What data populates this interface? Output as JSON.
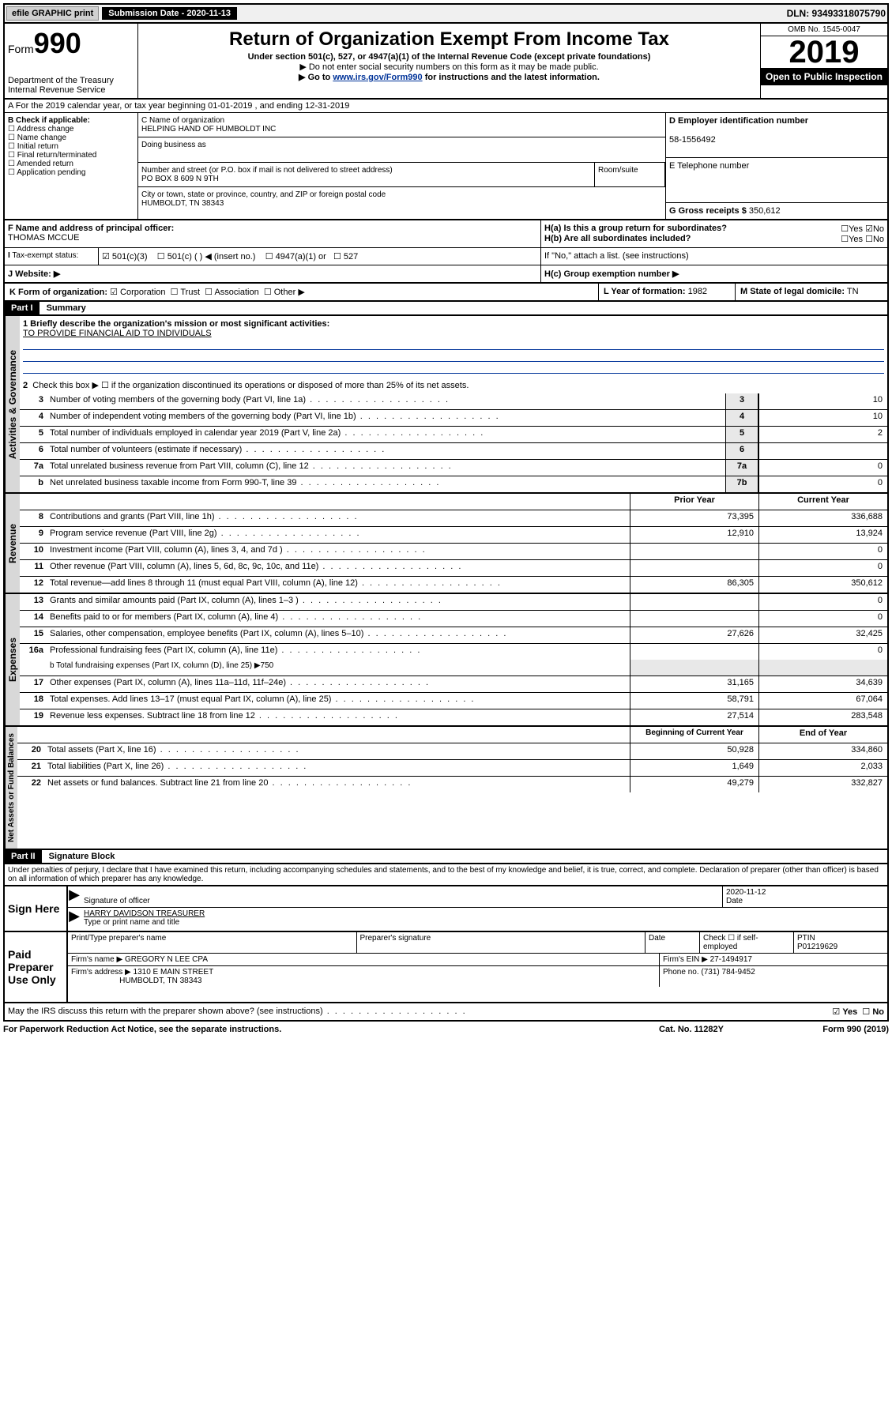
{
  "topbar": {
    "efile": "efile GRAPHIC print",
    "submission_label": "Submission Date - 2020-11-13",
    "dln": "DLN: 93493318075790"
  },
  "header": {
    "form_label": "Form",
    "form_number": "990",
    "dept": "Department of the Treasury",
    "irs": "Internal Revenue Service",
    "title": "Return of Organization Exempt From Income Tax",
    "subtitle": "Under section 501(c), 527, or 4947(a)(1) of the Internal Revenue Code (except private foundations)",
    "note1": "▶ Do not enter social security numbers on this form as it may be made public.",
    "note2_pre": "▶ Go to ",
    "note2_link": "www.irs.gov/Form990",
    "note2_post": " for instructions and the latest information.",
    "omb": "OMB No. 1545-0047",
    "year": "2019",
    "open": "Open to Public Inspection"
  },
  "line_a": "A For the 2019 calendar year, or tax year beginning 01-01-2019     , and ending 12-31-2019",
  "box_b": {
    "label": "B Check if applicable:",
    "opts": [
      "Address change",
      "Name change",
      "Initial return",
      "Final return/terminated",
      "Amended return",
      "Application pending"
    ]
  },
  "box_c": {
    "name_label": "C Name of organization",
    "name": "HELPING HAND OF HUMBOLDT INC",
    "dba_label": "Doing business as",
    "addr_label": "Number and street (or P.O. box if mail is not delivered to street address)",
    "addr": "PO BOX 8 609 N 9TH",
    "room_label": "Room/suite",
    "city_label": "City or town, state or province, country, and ZIP or foreign postal code",
    "city": "HUMBOLDT, TN  38343"
  },
  "box_d": {
    "label": "D Employer identification number",
    "val": "58-1556492"
  },
  "box_e": {
    "label": "E Telephone number"
  },
  "box_g": {
    "label": "G Gross receipts $",
    "val": "350,612"
  },
  "box_f": {
    "label": "F  Name and address of principal officer:",
    "val": "THOMAS MCCUE"
  },
  "box_h": {
    "h_a": "H(a)  Is this a group return for subordinates?",
    "h_b": "H(b)  Are all subordinates included?",
    "h_b_note": "If \"No,\" attach a list. (see instructions)",
    "h_c": "H(c)  Group exemption number ▶",
    "yes": "Yes",
    "no": "No"
  },
  "box_i": {
    "label": "Tax-exempt status:",
    "opts": [
      "501(c)(3)",
      "501(c) (  ) ◀ (insert no.)",
      "4947(a)(1) or",
      "527"
    ]
  },
  "box_j": {
    "label": "J   Website: ▶"
  },
  "box_k": {
    "label": "K Form of organization:",
    "opts": [
      "Corporation",
      "Trust",
      "Association",
      "Other ▶"
    ]
  },
  "box_l": {
    "label": "L Year of formation:",
    "val": "1982"
  },
  "box_m": {
    "label": "M State of legal domicile:",
    "val": "TN"
  },
  "part1": {
    "header": "Part I",
    "title": "Summary"
  },
  "summary": {
    "side1": "Activities & Governance",
    "side2": "Revenue",
    "side3": "Expenses",
    "side4": "Net Assets or Fund Balances",
    "l1_label": "1  Briefly describe the organization's mission or most significant activities:",
    "l1_val": "TO PROVIDE FINANCIAL AID TO INDIVIDUALS",
    "l2": "Check this box ▶ ☐  if the organization discontinued its operations or disposed of more than 25% of its net assets.",
    "rows_top": [
      {
        "n": "3",
        "d": "Number of voting members of the governing body (Part VI, line 1a)",
        "lbl": "3",
        "v": "10"
      },
      {
        "n": "4",
        "d": "Number of independent voting members of the governing body (Part VI, line 1b)",
        "lbl": "4",
        "v": "10"
      },
      {
        "n": "5",
        "d": "Total number of individuals employed in calendar year 2019 (Part V, line 2a)",
        "lbl": "5",
        "v": "2"
      },
      {
        "n": "6",
        "d": "Total number of volunteers (estimate if necessary)",
        "lbl": "6",
        "v": ""
      },
      {
        "n": "7a",
        "d": "Total unrelated business revenue from Part VIII, column (C), line 12",
        "lbl": "7a",
        "v": "0"
      },
      {
        "n": "b",
        "d": "Net unrelated business taxable income from Form 990-T, line 39",
        "lbl": "7b",
        "v": "0"
      }
    ],
    "col_py": "Prior Year",
    "col_cy": "Current Year",
    "rows_rev": [
      {
        "n": "8",
        "d": "Contributions and grants (Part VIII, line 1h)",
        "py": "73,395",
        "cy": "336,688"
      },
      {
        "n": "9",
        "d": "Program service revenue (Part VIII, line 2g)",
        "py": "12,910",
        "cy": "13,924"
      },
      {
        "n": "10",
        "d": "Investment income (Part VIII, column (A), lines 3, 4, and 7d )",
        "py": "",
        "cy": "0"
      },
      {
        "n": "11",
        "d": "Other revenue (Part VIII, column (A), lines 5, 6d, 8c, 9c, 10c, and 11e)",
        "py": "",
        "cy": "0"
      },
      {
        "n": "12",
        "d": "Total revenue—add lines 8 through 11 (must equal Part VIII, column (A), line 12)",
        "py": "86,305",
        "cy": "350,612"
      }
    ],
    "rows_exp": [
      {
        "n": "13",
        "d": "Grants and similar amounts paid (Part IX, column (A), lines 1–3 )",
        "py": "",
        "cy": "0"
      },
      {
        "n": "14",
        "d": "Benefits paid to or for members (Part IX, column (A), line 4)",
        "py": "",
        "cy": "0"
      },
      {
        "n": "15",
        "d": "Salaries, other compensation, employee benefits (Part IX, column (A), lines 5–10)",
        "py": "27,626",
        "cy": "32,425"
      },
      {
        "n": "16a",
        "d": "Professional fundraising fees (Part IX, column (A), line 11e)",
        "py": "",
        "cy": "0"
      }
    ],
    "l16b": "b  Total fundraising expenses (Part IX, column (D), line 25) ▶750",
    "rows_exp2": [
      {
        "n": "17",
        "d": "Other expenses (Part IX, column (A), lines 11a–11d, 11f–24e)",
        "py": "31,165",
        "cy": "34,639"
      },
      {
        "n": "18",
        "d": "Total expenses. Add lines 13–17 (must equal Part IX, column (A), line 25)",
        "py": "58,791",
        "cy": "67,064"
      },
      {
        "n": "19",
        "d": "Revenue less expenses. Subtract line 18 from line 12",
        "py": "27,514",
        "cy": "283,548"
      }
    ],
    "col_boy": "Beginning of Current Year",
    "col_eoy": "End of Year",
    "rows_net": [
      {
        "n": "20",
        "d": "Total assets (Part X, line 16)",
        "py": "50,928",
        "cy": "334,860"
      },
      {
        "n": "21",
        "d": "Total liabilities (Part X, line 26)",
        "py": "1,649",
        "cy": "2,033"
      },
      {
        "n": "22",
        "d": "Net assets or fund balances. Subtract line 21 from line 20",
        "py": "49,279",
        "cy": "332,827"
      }
    ]
  },
  "part2": {
    "header": "Part II",
    "title": "Signature Block"
  },
  "sig": {
    "declaration": "Under penalties of perjury, I declare that I have examined this return, including accompanying schedules and statements, and to the best of my knowledge and belief, it is true, correct, and complete. Declaration of preparer (other than officer) is based on all information of which preparer has any knowledge.",
    "sign_here": "Sign Here",
    "date": "2020-11-12",
    "date_label": "Date",
    "sig_officer": "Signature of officer",
    "name_title": "HARRY DAVIDSON  TREASURER",
    "name_title_label": "Type or print name and title",
    "paid": "Paid Preparer Use Only",
    "prep_name_label": "Print/Type preparer's name",
    "prep_sig_label": "Preparer's signature",
    "prep_date_label": "Date",
    "self_emp": "Check ☐ if self-employed",
    "ptin_label": "PTIN",
    "ptin": "P01219629",
    "firm_name_label": "Firm's name    ▶",
    "firm_name": "GREGORY N LEE CPA",
    "firm_ein_label": "Firm's EIN ▶",
    "firm_ein": "27-1494917",
    "firm_addr_label": "Firm's address ▶",
    "firm_addr": "1310 E MAIN STREET",
    "firm_city": "HUMBOLDT, TN  38343",
    "firm_phone_label": "Phone no.",
    "firm_phone": "(731) 784-9452"
  },
  "footer": {
    "discuss": "May the IRS discuss this return with the preparer shown above? (see instructions)",
    "yes": "Yes",
    "no": "No",
    "paperwork": "For Paperwork Reduction Act Notice, see the separate instructions.",
    "cat": "Cat. No. 11282Y",
    "form": "Form 990 (2019)"
  },
  "colors": {
    "link": "#003399",
    "black": "#000000",
    "gray": "#d8d8d8"
  }
}
